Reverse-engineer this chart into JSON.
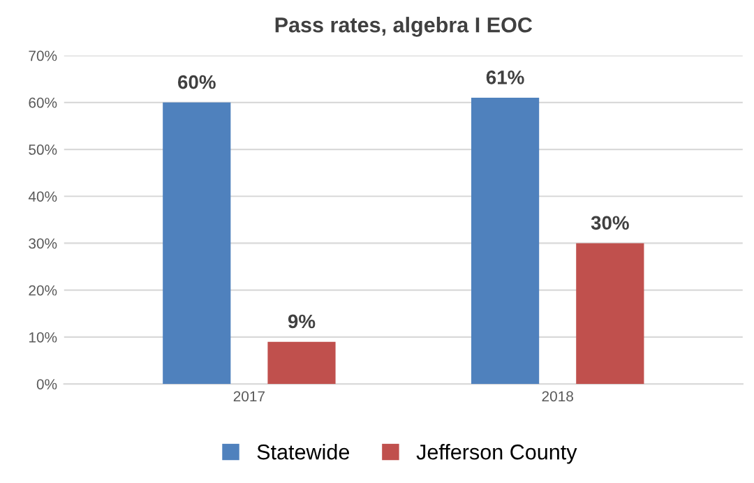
{
  "chart_data": {
    "type": "bar",
    "title": "Pass rates, algebra I EOC",
    "categories": [
      "2017",
      "2018"
    ],
    "series": [
      {
        "name": "Statewide",
        "color": "#4f81bd",
        "values": [
          60,
          61
        ],
        "value_labels": [
          "60%",
          "61%"
        ]
      },
      {
        "name": "Jefferson County",
        "color": "#c0504d",
        "values": [
          9,
          30
        ],
        "value_labels": [
          "9%",
          "30%"
        ]
      }
    ],
    "ylim": [
      0,
      70
    ],
    "yticks": [
      {
        "value": 0,
        "label": "0%"
      },
      {
        "value": 10,
        "label": "10%"
      },
      {
        "value": 20,
        "label": "20%"
      },
      {
        "value": 30,
        "label": "30%"
      },
      {
        "value": 40,
        "label": "40%"
      },
      {
        "value": 50,
        "label": "50%"
      },
      {
        "value": 60,
        "label": "60%"
      },
      {
        "value": 70,
        "label": "70%"
      }
    ],
    "grid": "y",
    "legend": "bottom"
  }
}
